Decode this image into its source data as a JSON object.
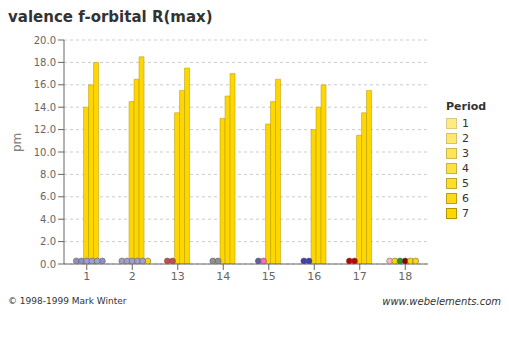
{
  "chart_data": {
    "type": "bar",
    "title": "valence f-orbital R(max)",
    "y_label": "pm",
    "series_label": "Period",
    "footer": "www.webelements.com",
    "copyright": "© 1998-1999 Mark Winter",
    "color": "#FFD700",
    "grid": true,
    "ylim": [
      0,
      20
    ],
    "yticks": [
      {
        "value": 0,
        "label": "0.0"
      },
      {
        "value": 2,
        "label": "2.0"
      },
      {
        "value": 4,
        "label": "4.0"
      },
      {
        "value": 6,
        "label": "6.0"
      },
      {
        "value": 8,
        "label": "8.0"
      },
      {
        "value": 10,
        "label": "10.0"
      },
      {
        "value": 12,
        "label": "12.0"
      },
      {
        "value": 14,
        "label": "14.0"
      },
      {
        "value": 16,
        "label": "16.0"
      },
      {
        "value": 18,
        "label": "18.0"
      },
      {
        "value": 20,
        "label": "20.0"
      }
    ],
    "categories": [
      "1",
      "2",
      "13",
      "14",
      "15",
      "16",
      "17",
      "18"
    ],
    "series": [
      {
        "name": "1",
        "values": [
          null,
          null,
          null,
          null,
          null,
          null,
          null,
          null
        ]
      },
      {
        "name": "2",
        "values": [
          null,
          null,
          null,
          null,
          null,
          null,
          null,
          null
        ]
      },
      {
        "name": "3",
        "values": [
          null,
          null,
          null,
          null,
          null,
          null,
          null,
          null
        ]
      },
      {
        "name": "4",
        "values": [
          14.0,
          14.5,
          13.5,
          13.0,
          12.5,
          12.0,
          11.5,
          null
        ]
      },
      {
        "name": "5",
        "values": [
          16.0,
          16.5,
          15.5,
          15.0,
          14.5,
          14.0,
          13.5,
          null
        ]
      },
      {
        "name": "6",
        "values": [
          18.0,
          18.5,
          17.5,
          17.0,
          16.5,
          16.0,
          15.5,
          null
        ]
      },
      {
        "name": "7",
        "values": [
          null,
          null,
          null,
          null,
          null,
          null,
          null,
          null
        ]
      }
    ],
    "dots": [
      {
        "group": "18",
        "period": "1",
        "color": "#FFB6C1"
      },
      {
        "group": "1",
        "period": "2",
        "color": "#9090C0"
      },
      {
        "group": "2",
        "period": "2",
        "color": "#A0A0C0"
      },
      {
        "group": "13",
        "period": "2",
        "color": "#C05050"
      },
      {
        "group": "14",
        "period": "2",
        "color": "#909090"
      },
      {
        "group": "15",
        "period": "2",
        "color": "#6060A0"
      },
      {
        "group": "16",
        "period": "2",
        "color": "#4040B0"
      },
      {
        "group": "17",
        "period": "2",
        "color": "#C00000"
      },
      {
        "group": "18",
        "period": "2",
        "color": "#FFD700"
      },
      {
        "group": "1",
        "period": "3",
        "color": "#9090C0"
      },
      {
        "group": "2",
        "period": "3",
        "color": "#A0A0C0"
      },
      {
        "group": "13",
        "period": "3",
        "color": "#C05050"
      },
      {
        "group": "14",
        "period": "3",
        "color": "#909090"
      },
      {
        "group": "15",
        "period": "3",
        "color": "#FF69B4"
      },
      {
        "group": "16",
        "period": "3",
        "color": "#4040B0"
      },
      {
        "group": "17",
        "period": "3",
        "color": "#C00000"
      },
      {
        "group": "18",
        "period": "3",
        "color": "#20A020"
      },
      {
        "group": "18",
        "period": "4",
        "color": "#8B0000"
      },
      {
        "group": "18",
        "period": "5",
        "color": "#FFD700"
      },
      {
        "group": "18",
        "period": "6",
        "color": "#FFD700"
      },
      {
        "group": "1",
        "period": "7",
        "color": "#9090C0"
      },
      {
        "group": "2",
        "period": "7",
        "color": "#FFD700"
      },
      {
        "group": "1",
        "period": "4",
        "color": "#A0A0D0"
      },
      {
        "group": "2",
        "period": "4",
        "color": "#A0A0D0"
      },
      {
        "group": "1",
        "period": "5",
        "color": "#A0A0D0"
      },
      {
        "group": "2",
        "period": "5",
        "color": "#A0A0D0"
      },
      {
        "group": "1",
        "period": "6",
        "color": "#A0A0D0"
      },
      {
        "group": "2",
        "period": "6",
        "color": "#A0A0D0"
      }
    ]
  }
}
